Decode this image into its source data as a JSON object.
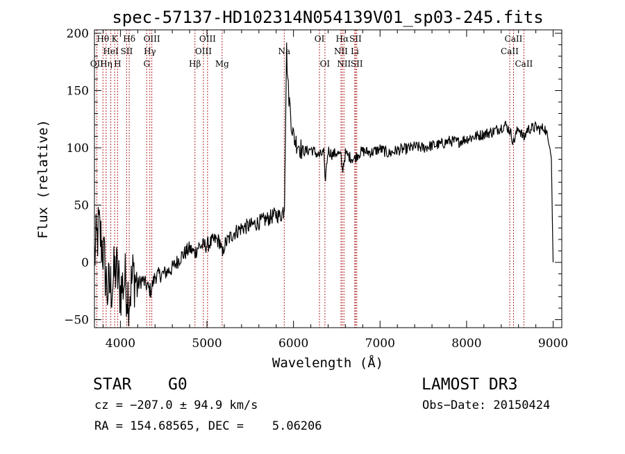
{
  "chart_data": {
    "type": "line",
    "title": "spec-57137-HD102314N054139V01_sp03-245.fits",
    "xlabel": "Wavelength (Å)",
    "ylabel": "Flux (relative)",
    "xlim": [
      3700,
      9100
    ],
    "ylim": [
      -57,
      203
    ],
    "xticks": [
      4000,
      5000,
      6000,
      7000,
      8000,
      9000
    ],
    "yticks": [
      -50,
      0,
      50,
      100,
      150,
      200
    ],
    "xtick_labels": [
      "4000",
      "5000",
      "6000",
      "7000",
      "8000",
      "9000"
    ],
    "ytick_labels": [
      "−50",
      "0",
      "50",
      "100",
      "150",
      "200"
    ],
    "series": [
      {
        "name": "flux",
        "x": [
          3700,
          3750,
          3800,
          3850,
          3900,
          3950,
          4000,
          4050,
          4100,
          4150,
          4200,
          4250,
          4300,
          4350,
          4400,
          4500,
          4600,
          4700,
          4800,
          4860,
          4900,
          5000,
          5100,
          5150,
          5180,
          5200,
          5300,
          5400,
          5500,
          5600,
          5700,
          5800,
          5850,
          5880,
          5895,
          5900,
          5920,
          5940,
          5960,
          5980,
          6000,
          6030,
          6060,
          6080,
          6100,
          6150,
          6200,
          6250,
          6300,
          6350,
          6363,
          6400,
          6450,
          6500,
          6550,
          6563,
          6600,
          6650,
          6700,
          6750,
          6800,
          6900,
          7000,
          7100,
          7200,
          7300,
          7400,
          7500,
          7600,
          7700,
          7800,
          7900,
          8000,
          8100,
          8200,
          8300,
          8400,
          8450,
          8500,
          8542,
          8600,
          8662,
          8700,
          8800,
          8850,
          8900,
          8930,
          8950,
          8965,
          8980,
          8990,
          9000
        ],
        "y": [
          5,
          30,
          10,
          -25,
          -20,
          -5,
          -25,
          -15,
          -30,
          -10,
          -20,
          -15,
          -20,
          -25,
          -12,
          -10,
          -5,
          5,
          12,
          8,
          14,
          15,
          20,
          18,
          5,
          15,
          25,
          30,
          32,
          35,
          38,
          42,
          40,
          45,
          50,
          80,
          185,
          150,
          135,
          120,
          110,
          105,
          103,
          100,
          98,
          97,
          99,
          96,
          93,
          96,
          70,
          98,
          94,
          96,
          92,
          80,
          95,
          92,
          90,
          95,
          97,
          96,
          99,
          95,
          98,
          99,
          101,
          100,
          102,
          103,
          106,
          105,
          108,
          110,
          112,
          114,
          118,
          120,
          115,
          105,
          118,
          108,
          116,
          118,
          116,
          118,
          110,
          105,
          100,
          90,
          40,
          0
        ]
      }
    ],
    "lines": [
      {
        "name": "O II",
        "wl": 3727,
        "label": "OII",
        "row": 3
      },
      {
        "name": "H-theta",
        "wl": 3798,
        "label": "Hθ",
        "row": 1
      },
      {
        "name": "H-eta",
        "wl": 3835,
        "label": "Hη",
        "row": 3
      },
      {
        "name": "Ca II K",
        "wl": 3934,
        "label": "K",
        "row": 1
      },
      {
        "name": "Ca II H",
        "wl": 3968,
        "label": "H",
        "row": 3
      },
      {
        "name": "He I",
        "wl": 3889,
        "label": "HeI",
        "row": 2
      },
      {
        "name": "S II",
        "wl": 4072,
        "label": "SII",
        "row": 2
      },
      {
        "name": "H-delta",
        "wl": 4102,
        "label": "Hδ",
        "row": 1
      },
      {
        "name": "G band",
        "wl": 4304,
        "label": "G",
        "row": 3
      },
      {
        "name": "H-gamma",
        "wl": 4340,
        "label": "Hγ",
        "row": 2
      },
      {
        "name": "O III 4363",
        "wl": 4363,
        "label": "OIII",
        "row": 1
      },
      {
        "name": "H-beta",
        "wl": 4861,
        "label": "Hβ",
        "row": 3
      },
      {
        "name": "O III 4959",
        "wl": 4959,
        "label": "OIII",
        "row": 2
      },
      {
        "name": "O III 5007",
        "wl": 5007,
        "label": "OIII",
        "row": 1
      },
      {
        "name": "Mg",
        "wl": 5175,
        "label": "Mg",
        "row": 3
      },
      {
        "name": "Na",
        "wl": 5893,
        "label": "Na",
        "row": 2
      },
      {
        "name": "O I 6300",
        "wl": 6300,
        "label": "OI",
        "row": 1
      },
      {
        "name": "O I 6363",
        "wl": 6363,
        "label": "OI",
        "row": 3
      },
      {
        "name": "N II 6548",
        "wl": 6548,
        "label": "NII",
        "row": 2
      },
      {
        "name": "H-alpha",
        "wl": 6563,
        "label": "Hα",
        "row": 1
      },
      {
        "name": "N II 6583",
        "wl": 6583,
        "label": "NII",
        "row": 3
      },
      {
        "name": "Li",
        "wl": 6708,
        "label": "Li",
        "row": 2
      },
      {
        "name": "S II 6716",
        "wl": 6716,
        "label": "SII",
        "row": 1
      },
      {
        "name": "S II 6731",
        "wl": 6731,
        "label": "SII",
        "row": 3
      },
      {
        "name": "Ca II 8498",
        "wl": 8498,
        "label": "CaII",
        "row": 2
      },
      {
        "name": "Ca II 8542",
        "wl": 8542,
        "label": "CaII",
        "row": 1
      },
      {
        "name": "Ca II 8662",
        "wl": 8662,
        "label": "CaII",
        "row": 3
      }
    ],
    "line_color": "#b22222",
    "spectrum_color": "#000000"
  },
  "info": {
    "class": "STAR",
    "subclass": "G0",
    "survey": "LAMOST DR3",
    "cz": "cz = −207.0 ± 94.9 km/s",
    "obs_date": "Obs−Date: 20150424",
    "coords": "RA = 154.68565, DEC =    5.06206"
  }
}
